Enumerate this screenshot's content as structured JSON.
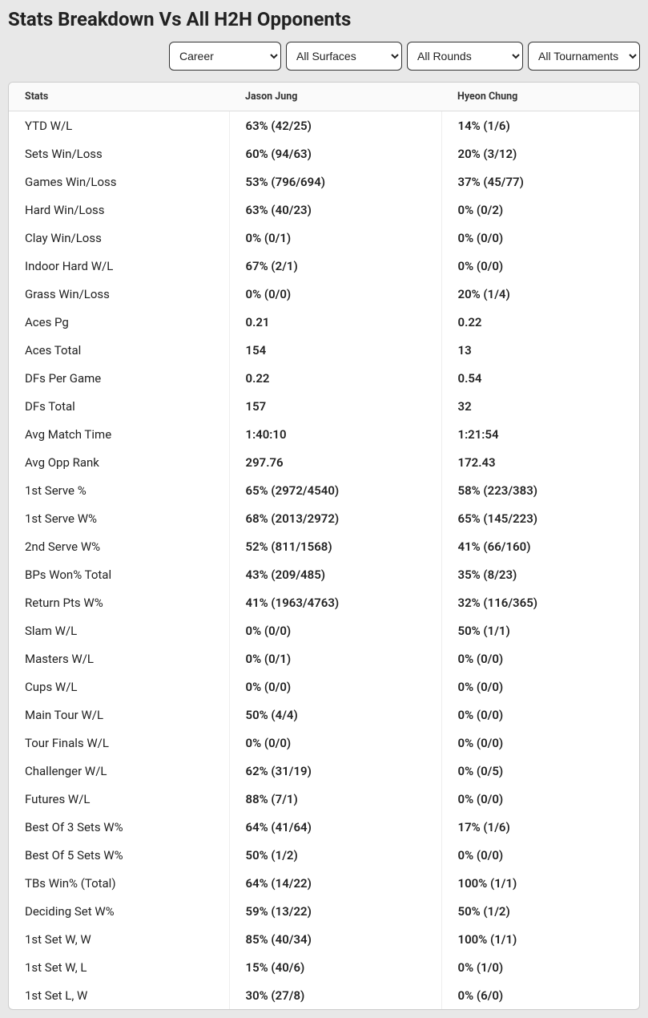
{
  "title": "Stats Breakdown Vs All H2H Opponents",
  "filters": {
    "career": "Career",
    "surfaces": "All Surfaces",
    "rounds": "All Rounds",
    "tournaments": "All Tournaments"
  },
  "columns": [
    "Stats",
    "Jason Jung",
    "Hyeon Chung"
  ],
  "rows": [
    {
      "label": "YTD W/L",
      "p1": "63% (42/25)",
      "p2": "14% (1/6)"
    },
    {
      "label": "Sets Win/Loss",
      "p1": "60% (94/63)",
      "p2": "20% (3/12)"
    },
    {
      "label": "Games Win/Loss",
      "p1": "53% (796/694)",
      "p2": "37% (45/77)"
    },
    {
      "label": "Hard Win/Loss",
      "p1": "63% (40/23)",
      "p2": "0% (0/2)"
    },
    {
      "label": "Clay Win/Loss",
      "p1": "0% (0/1)",
      "p2": "0% (0/0)"
    },
    {
      "label": "Indoor Hard W/L",
      "p1": "67% (2/1)",
      "p2": "0% (0/0)"
    },
    {
      "label": "Grass Win/Loss",
      "p1": "0% (0/0)",
      "p2": "20% (1/4)"
    },
    {
      "label": "Aces Pg",
      "p1": "0.21",
      "p2": "0.22"
    },
    {
      "label": "Aces Total",
      "p1": "154",
      "p2": "13"
    },
    {
      "label": "DFs Per Game",
      "p1": "0.22",
      "p2": "0.54"
    },
    {
      "label": "DFs Total",
      "p1": "157",
      "p2": "32"
    },
    {
      "label": "Avg Match Time",
      "p1": "1:40:10",
      "p2": "1:21:54"
    },
    {
      "label": "Avg Opp Rank",
      "p1": "297.76",
      "p2": "172.43"
    },
    {
      "label": "1st Serve %",
      "p1": "65% (2972/4540)",
      "p2": "58% (223/383)"
    },
    {
      "label": "1st Serve W%",
      "p1": "68% (2013/2972)",
      "p2": "65% (145/223)"
    },
    {
      "label": "2nd Serve W%",
      "p1": "52% (811/1568)",
      "p2": "41% (66/160)"
    },
    {
      "label": "BPs Won% Total",
      "p1": "43% (209/485)",
      "p2": "35% (8/23)"
    },
    {
      "label": "Return Pts W%",
      "p1": "41% (1963/4763)",
      "p2": "32% (116/365)"
    },
    {
      "label": "Slam W/L",
      "p1": "0% (0/0)",
      "p2": "50% (1/1)"
    },
    {
      "label": "Masters W/L",
      "p1": "0% (0/1)",
      "p2": "0% (0/0)"
    },
    {
      "label": "Cups W/L",
      "p1": "0% (0/0)",
      "p2": "0% (0/0)"
    },
    {
      "label": "Main Tour W/L",
      "p1": "50% (4/4)",
      "p2": "0% (0/0)"
    },
    {
      "label": "Tour Finals W/L",
      "p1": "0% (0/0)",
      "p2": "0% (0/0)"
    },
    {
      "label": "Challenger W/L",
      "p1": "62% (31/19)",
      "p2": "0% (0/5)"
    },
    {
      "label": "Futures W/L",
      "p1": "88% (7/1)",
      "p2": "0% (0/0)"
    },
    {
      "label": "Best Of 3 Sets W%",
      "p1": "64% (41/64)",
      "p2": "17% (1/6)"
    },
    {
      "label": "Best Of 5 Sets W%",
      "p1": "50% (1/2)",
      "p2": "0% (0/0)"
    },
    {
      "label": "TBs Win% (Total)",
      "p1": "64% (14/22)",
      "p2": "100% (1/1)"
    },
    {
      "label": "Deciding Set W%",
      "p1": "59% (13/22)",
      "p2": "50% (1/2)"
    },
    {
      "label": "1st Set W, W",
      "p1": "85% (40/34)",
      "p2": "100% (1/1)"
    },
    {
      "label": "1st Set W, L",
      "p1": "15% (40/6)",
      "p2": "0% (1/0)"
    },
    {
      "label": "1st Set L, W",
      "p1": "30% (27/8)",
      "p2": "0% (6/0)"
    }
  ]
}
